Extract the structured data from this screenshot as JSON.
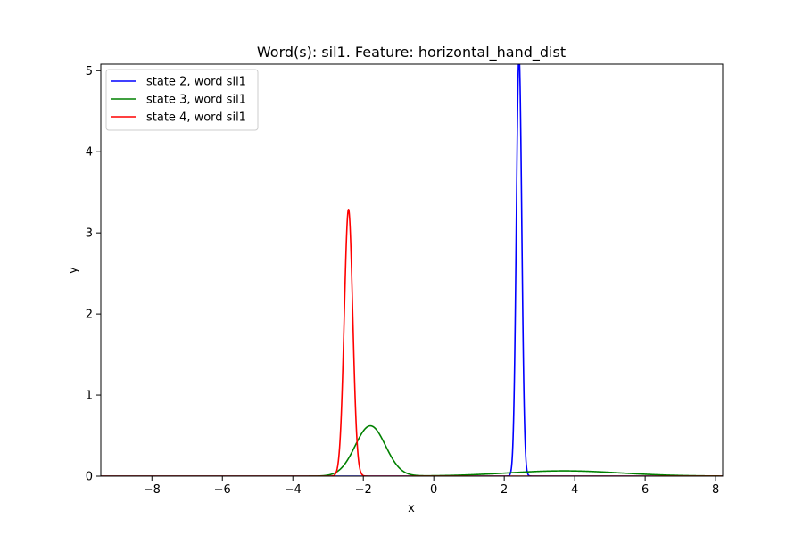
{
  "chart_data": {
    "type": "line",
    "title": "Word(s): sil1. Feature: horizontal_hand_dist",
    "xlabel": "x",
    "ylabel": "y",
    "xlim": [
      -9.45,
      8.2
    ],
    "ylim": [
      0,
      5.08
    ],
    "xticks": [
      -8,
      -6,
      -4,
      -2,
      0,
      2,
      4,
      6,
      8
    ],
    "yticks": [
      0,
      1,
      2,
      3,
      4,
      5
    ],
    "xtick_labels": [
      "−8",
      "−6",
      "−4",
      "−2",
      "0",
      "2",
      "4",
      "6",
      "8"
    ],
    "ytick_labels": [
      "0",
      "1",
      "2",
      "3",
      "4",
      "5"
    ],
    "legend_position": "top-left",
    "grid": false,
    "series": [
      {
        "name": "state 2, word sil1",
        "color": "#0000ff",
        "distribution": "gaussian",
        "mean": 2.42,
        "sd": 0.077,
        "peak": 5.2
      },
      {
        "name": "state 3, word sil1",
        "color": "#008000",
        "distribution": "gaussian mixture",
        "components": [
          {
            "mean": -1.8,
            "sd": 0.43,
            "peak": 0.62
          },
          {
            "mean": 3.7,
            "sd": 1.6,
            "peak": 0.065
          }
        ]
      },
      {
        "name": "state 4, word sil1",
        "color": "#ff0000",
        "distribution": "gaussian",
        "mean": -2.42,
        "sd": 0.12,
        "peak": 3.29
      }
    ]
  }
}
